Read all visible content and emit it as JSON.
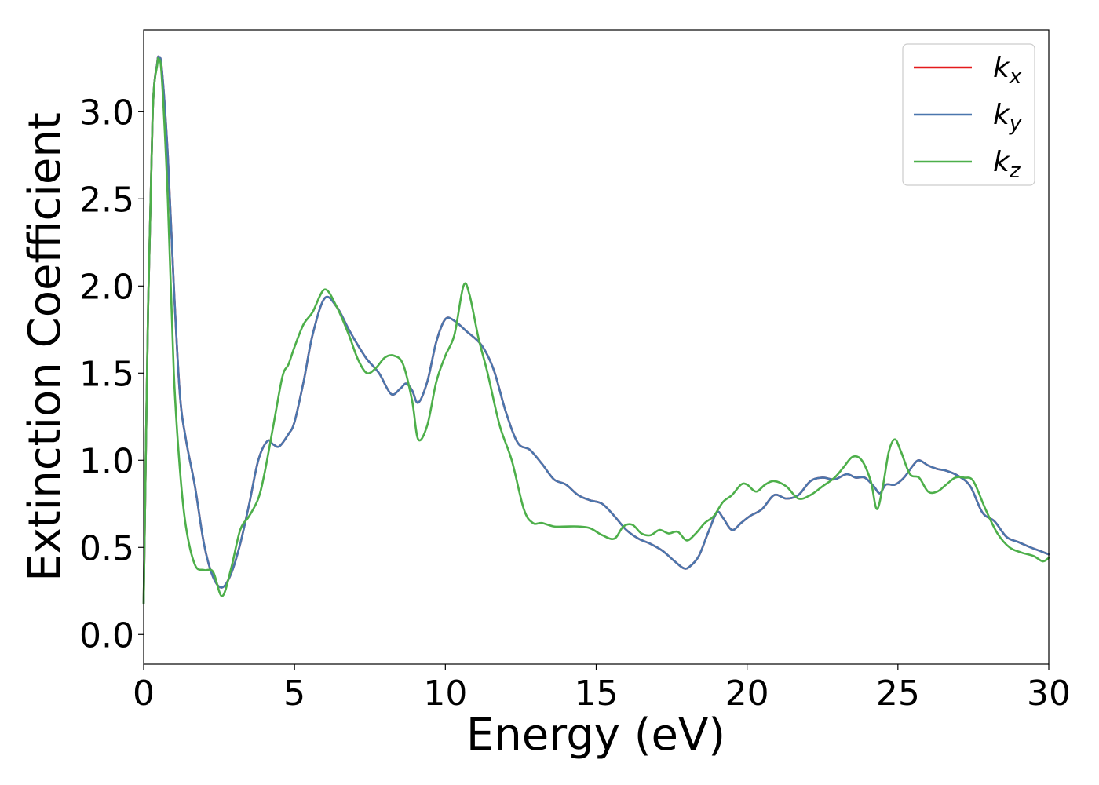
{
  "chart_data": {
    "type": "line",
    "title": "",
    "xlabel": "Energy (eV)",
    "ylabel": "Extinction Coefficient",
    "xlim": [
      0,
      30
    ],
    "ylim": [
      -0.17,
      3.47
    ],
    "xticks": [
      0,
      5,
      10,
      15,
      20,
      25,
      30
    ],
    "xtick_labels": [
      "0",
      "5",
      "10",
      "15",
      "20",
      "25",
      "30"
    ],
    "yticks": [
      0.0,
      0.5,
      1.0,
      1.5,
      2.0,
      2.5,
      3.0
    ],
    "ytick_labels": [
      "0.0",
      "0.5",
      "1.0",
      "1.5",
      "2.0",
      "2.5",
      "3.0"
    ],
    "grid": false,
    "legend_position": "top-right",
    "series": [
      {
        "name": "k_x",
        "label_base": "k",
        "label_sub": "x",
        "color": "#e41a1c",
        "x": [
          0,
          0.15,
          0.3,
          0.45,
          0.5,
          0.6,
          0.8,
          1.0,
          1.2,
          1.4,
          1.7,
          2.0,
          2.3,
          2.6,
          2.9,
          3.2,
          3.5,
          3.8,
          4.1,
          4.3,
          4.5,
          4.8,
          5.0,
          5.3,
          5.6,
          6.0,
          6.4,
          6.8,
          7.1,
          7.4,
          7.8,
          8.2,
          8.5,
          8.7,
          8.9,
          9.1,
          9.4,
          9.7,
          10.0,
          10.3,
          10.7,
          11.2,
          11.6,
          12.0,
          12.4,
          12.8,
          13.2,
          13.6,
          14.0,
          14.4,
          14.8,
          15.2,
          15.6,
          16.0,
          16.4,
          16.8,
          17.2,
          17.6,
          17.9,
          18.1,
          18.4,
          18.7,
          19.0,
          19.2,
          19.5,
          19.8,
          20.1,
          20.5,
          20.9,
          21.3,
          21.7,
          22.1,
          22.5,
          22.9,
          23.3,
          23.6,
          23.9,
          24.2,
          24.4,
          24.6,
          24.9,
          25.2,
          25.5,
          25.7,
          26.0,
          26.3,
          26.6,
          27.0,
          27.4,
          27.8,
          28.2,
          28.6,
          29.0,
          29.4,
          29.7,
          30.0
        ],
        "y": [
          0.18,
          1.9,
          3.0,
          3.28,
          3.31,
          3.25,
          2.75,
          2.0,
          1.38,
          1.12,
          0.85,
          0.52,
          0.33,
          0.27,
          0.35,
          0.52,
          0.75,
          1.0,
          1.11,
          1.09,
          1.08,
          1.15,
          1.22,
          1.45,
          1.72,
          1.93,
          1.88,
          1.75,
          1.66,
          1.58,
          1.5,
          1.38,
          1.41,
          1.44,
          1.4,
          1.33,
          1.45,
          1.68,
          1.81,
          1.8,
          1.74,
          1.66,
          1.52,
          1.28,
          1.1,
          1.06,
          0.98,
          0.89,
          0.86,
          0.8,
          0.77,
          0.75,
          0.68,
          0.6,
          0.55,
          0.52,
          0.48,
          0.42,
          0.38,
          0.39,
          0.45,
          0.58,
          0.7,
          0.67,
          0.6,
          0.64,
          0.68,
          0.72,
          0.8,
          0.78,
          0.8,
          0.88,
          0.9,
          0.89,
          0.92,
          0.9,
          0.9,
          0.85,
          0.81,
          0.86,
          0.86,
          0.9,
          0.97,
          1.0,
          0.97,
          0.95,
          0.94,
          0.91,
          0.85,
          0.7,
          0.65,
          0.56,
          0.53,
          0.5,
          0.48,
          0.46
        ]
      },
      {
        "name": "k_y",
        "label_base": "k",
        "label_sub": "y",
        "color": "#4a76ad",
        "x": [
          0,
          0.15,
          0.3,
          0.45,
          0.5,
          0.6,
          0.8,
          1.0,
          1.2,
          1.4,
          1.7,
          2.0,
          2.3,
          2.6,
          2.9,
          3.2,
          3.5,
          3.8,
          4.1,
          4.3,
          4.5,
          4.8,
          5.0,
          5.3,
          5.6,
          6.0,
          6.4,
          6.8,
          7.1,
          7.4,
          7.8,
          8.2,
          8.5,
          8.7,
          8.9,
          9.1,
          9.4,
          9.7,
          10.0,
          10.3,
          10.7,
          11.2,
          11.6,
          12.0,
          12.4,
          12.8,
          13.2,
          13.6,
          14.0,
          14.4,
          14.8,
          15.2,
          15.6,
          16.0,
          16.4,
          16.8,
          17.2,
          17.6,
          17.9,
          18.1,
          18.4,
          18.7,
          19.0,
          19.2,
          19.5,
          19.8,
          20.1,
          20.5,
          20.9,
          21.3,
          21.7,
          22.1,
          22.5,
          22.9,
          23.3,
          23.6,
          23.9,
          24.2,
          24.4,
          24.6,
          24.9,
          25.2,
          25.5,
          25.7,
          26.0,
          26.3,
          26.6,
          27.0,
          27.4,
          27.8,
          28.2,
          28.6,
          29.0,
          29.4,
          29.7,
          30.0
        ],
        "y": [
          0.18,
          1.9,
          3.0,
          3.28,
          3.31,
          3.25,
          2.75,
          2.0,
          1.38,
          1.12,
          0.85,
          0.52,
          0.33,
          0.27,
          0.35,
          0.52,
          0.75,
          1.0,
          1.11,
          1.09,
          1.08,
          1.15,
          1.22,
          1.45,
          1.72,
          1.93,
          1.88,
          1.75,
          1.66,
          1.58,
          1.5,
          1.38,
          1.41,
          1.44,
          1.4,
          1.33,
          1.45,
          1.68,
          1.81,
          1.8,
          1.74,
          1.66,
          1.52,
          1.28,
          1.1,
          1.06,
          0.98,
          0.89,
          0.86,
          0.8,
          0.77,
          0.75,
          0.68,
          0.6,
          0.55,
          0.52,
          0.48,
          0.42,
          0.38,
          0.39,
          0.45,
          0.58,
          0.7,
          0.67,
          0.6,
          0.64,
          0.68,
          0.72,
          0.8,
          0.78,
          0.8,
          0.88,
          0.9,
          0.89,
          0.92,
          0.9,
          0.9,
          0.85,
          0.81,
          0.86,
          0.86,
          0.9,
          0.97,
          1.0,
          0.97,
          0.95,
          0.94,
          0.91,
          0.85,
          0.7,
          0.65,
          0.56,
          0.53,
          0.5,
          0.48,
          0.46
        ]
      },
      {
        "name": "k_z",
        "label_base": "k",
        "label_sub": "z",
        "color": "#4daf4a",
        "x": [
          0,
          0.15,
          0.3,
          0.45,
          0.5,
          0.6,
          0.8,
          1.0,
          1.2,
          1.4,
          1.7,
          2.0,
          2.3,
          2.6,
          2.9,
          3.2,
          3.5,
          3.8,
          4.0,
          4.3,
          4.6,
          4.8,
          5.0,
          5.3,
          5.6,
          6.0,
          6.4,
          6.8,
          7.1,
          7.4,
          7.7,
          8.0,
          8.3,
          8.6,
          8.9,
          9.1,
          9.4,
          9.7,
          10.0,
          10.3,
          10.6,
          10.8,
          11.1,
          11.4,
          11.8,
          12.2,
          12.6,
          12.9,
          13.2,
          13.6,
          14.0,
          14.4,
          14.8,
          15.2,
          15.6,
          15.9,
          16.2,
          16.5,
          16.8,
          17.1,
          17.4,
          17.7,
          18.0,
          18.3,
          18.6,
          18.9,
          19.2,
          19.5,
          19.8,
          20.0,
          20.3,
          20.6,
          20.9,
          21.3,
          21.7,
          22.1,
          22.5,
          22.9,
          23.2,
          23.5,
          23.8,
          24.1,
          24.3,
          24.5,
          24.7,
          24.9,
          25.1,
          25.4,
          25.7,
          26.0,
          26.3,
          26.6,
          26.9,
          27.2,
          27.5,
          27.9,
          28.3,
          28.7,
          29.1,
          29.5,
          29.8,
          30.0
        ],
        "y": [
          0.18,
          1.9,
          3.0,
          3.27,
          3.3,
          3.2,
          2.5,
          1.5,
          0.95,
          0.62,
          0.4,
          0.37,
          0.36,
          0.22,
          0.38,
          0.6,
          0.68,
          0.78,
          0.92,
          1.2,
          1.48,
          1.55,
          1.65,
          1.78,
          1.85,
          1.98,
          1.88,
          1.72,
          1.58,
          1.5,
          1.53,
          1.59,
          1.6,
          1.55,
          1.34,
          1.12,
          1.2,
          1.45,
          1.6,
          1.72,
          2.0,
          1.95,
          1.7,
          1.5,
          1.2,
          1.0,
          0.72,
          0.64,
          0.64,
          0.62,
          0.62,
          0.62,
          0.61,
          0.57,
          0.55,
          0.62,
          0.63,
          0.58,
          0.57,
          0.6,
          0.58,
          0.59,
          0.54,
          0.58,
          0.64,
          0.68,
          0.76,
          0.8,
          0.86,
          0.86,
          0.82,
          0.86,
          0.88,
          0.85,
          0.78,
          0.8,
          0.85,
          0.9,
          0.96,
          1.02,
          1.0,
          0.88,
          0.72,
          0.85,
          1.05,
          1.12,
          1.05,
          0.92,
          0.9,
          0.82,
          0.82,
          0.86,
          0.9,
          0.9,
          0.88,
          0.72,
          0.58,
          0.5,
          0.47,
          0.45,
          0.42,
          0.44
        ]
      }
    ]
  }
}
